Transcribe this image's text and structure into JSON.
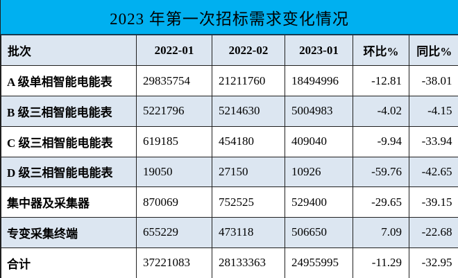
{
  "title": "2023 年第一次招标需求变化情况",
  "colors": {
    "title_bg": "#00B0F0",
    "header_bg": "#DCE6F1",
    "stripe_bg": "#DCE6F1",
    "row_bg": "#FFFFFF",
    "grid_border": "#1F1F1F",
    "text": "#000000"
  },
  "chart_data": {
    "type": "table",
    "title": "2023 年第一次招标需求变化情况",
    "columns": [
      "批次",
      "2022-01",
      "2022-02",
      "2023-01",
      "环比%",
      "同比%"
    ],
    "rows": [
      [
        "A 级单相智能电能表",
        "29835754",
        "21211760",
        "18494996",
        "-12.81",
        "-38.01"
      ],
      [
        "B 级三相智能电能表",
        "5221796",
        "5214630",
        "5004983",
        "-4.02",
        "-4.15"
      ],
      [
        "C 级三相智能电能表",
        "619185",
        "454180",
        "409040",
        "-9.94",
        "-33.94"
      ],
      [
        "D 级三相智能电能表",
        "19050",
        "27150",
        "10926",
        "-59.76",
        "-42.65"
      ],
      [
        "集中器及采集器",
        "870069",
        "752525",
        "529400",
        "-29.65",
        "-39.15"
      ],
      [
        "专变采集终端",
        "655229",
        "473118",
        "506650",
        "7.09",
        "-22.68"
      ],
      [
        "合计",
        "37221083",
        "28133363",
        "24955995",
        "-11.29",
        "-32.95"
      ]
    ]
  }
}
